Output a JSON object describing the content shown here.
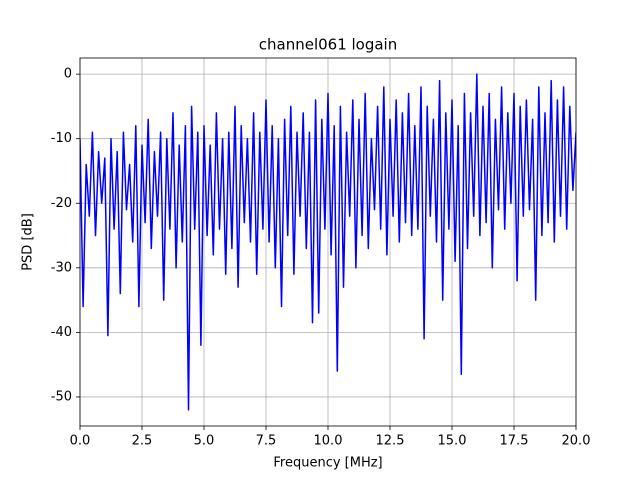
{
  "chart_data": {
    "type": "line",
    "title": "channel061 logain",
    "xlabel": "Frequency [MHz]",
    "ylabel": "PSD [dB]",
    "grid": true,
    "xlim": [
      0,
      20
    ],
    "ylim": [
      -54.5,
      2.5
    ],
    "xticks": [
      {
        "value": 0,
        "label": "0.0"
      },
      2.5,
      {
        "value": 5,
        "label": "5.0"
      },
      7.5,
      {
        "value": 10,
        "label": "10.0"
      },
      12.5,
      {
        "value": 15,
        "label": "15.0"
      },
      17.5,
      {
        "value": 20,
        "label": "20.0"
      }
    ],
    "yticks": [
      0,
      -10,
      -20,
      -30,
      -40,
      -50
    ],
    "x": [
      0,
      0.125,
      0.25,
      0.375,
      0.5,
      0.625,
      0.75,
      0.875,
      1,
      1.125,
      1.25,
      1.375,
      1.5,
      1.625,
      1.75,
      1.875,
      2,
      2.125,
      2.25,
      2.375,
      2.5,
      2.625,
      2.75,
      2.875,
      3,
      3.125,
      3.25,
      3.375,
      3.5,
      3.625,
      3.75,
      3.875,
      4,
      4.125,
      4.25,
      4.375,
      4.5,
      4.625,
      4.75,
      4.875,
      5,
      5.125,
      5.25,
      5.375,
      5.5,
      5.625,
      5.75,
      5.875,
      6,
      6.125,
      6.25,
      6.375,
      6.5,
      6.625,
      6.75,
      6.875,
      7,
      7.125,
      7.25,
      7.375,
      7.5,
      7.625,
      7.75,
      7.875,
      8,
      8.125,
      8.25,
      8.375,
      8.5,
      8.625,
      8.75,
      8.875,
      9,
      9.125,
      9.25,
      9.375,
      9.5,
      9.625,
      9.75,
      9.875,
      10,
      10.125,
      10.25,
      10.375,
      10.5,
      10.625,
      10.75,
      10.875,
      11,
      11.125,
      11.25,
      11.375,
      11.5,
      11.625,
      11.75,
      11.875,
      12,
      12.125,
      12.25,
      12.375,
      12.5,
      12.625,
      12.75,
      12.875,
      13,
      13.125,
      13.25,
      13.375,
      13.5,
      13.625,
      13.75,
      13.875,
      14,
      14.125,
      14.25,
      14.375,
      14.5,
      14.625,
      14.75,
      14.875,
      15,
      15.125,
      15.25,
      15.375,
      15.5,
      15.625,
      15.75,
      15.875,
      16,
      16.125,
      16.25,
      16.375,
      16.5,
      16.625,
      16.75,
      16.875,
      17,
      17.125,
      17.25,
      17.375,
      17.5,
      17.625,
      17.75,
      17.875,
      18,
      18.125,
      18.25,
      18.375,
      18.5,
      18.625,
      18.75,
      18.875,
      19,
      19.125,
      19.25,
      19.375,
      19.5,
      19.625,
      19.75,
      19.875,
      20
    ],
    "series": [
      {
        "color": "#0000ff",
        "values": [
          -10,
          -36,
          -14,
          -22,
          -9,
          -25,
          -12,
          -20,
          -13,
          -40.5,
          -10,
          -24,
          -12,
          -34,
          -9,
          -21,
          -14,
          -26,
          -8,
          -36,
          -11,
          -23,
          -7,
          -27,
          -12,
          -22,
          -9,
          -35,
          -10,
          -24,
          -6,
          -30,
          -11,
          -26,
          -8,
          -52,
          -5,
          -24,
          -9,
          -42,
          -8,
          -25,
          -11,
          -28,
          -6,
          -24,
          -10,
          -31,
          -9,
          -27,
          -5,
          -33,
          -8,
          -23,
          -10,
          -26,
          -6,
          -31,
          -9,
          -24,
          -4,
          -26,
          -8,
          -30,
          -10,
          -36,
          -7,
          -25,
          -5,
          -31,
          -9,
          -22,
          -6,
          -27,
          -9,
          -38.5,
          -4,
          -37,
          -7,
          -24,
          -3,
          -28,
          -8,
          -46,
          -5,
          -33,
          -9,
          -22,
          -4,
          -30,
          -7,
          -25,
          -3,
          -27,
          -10,
          -21,
          -5,
          -24,
          -2,
          -28,
          -7,
          -22,
          -4,
          -26,
          -6,
          -23,
          -3,
          -25,
          -8,
          -24,
          -2,
          -41,
          -5,
          -22,
          -7,
          -26,
          -1,
          -35,
          -6,
          -24,
          -4,
          -29,
          -8,
          -46.5,
          -3,
          -27,
          -6,
          -22,
          0,
          -25,
          -5,
          -23,
          -3,
          -30,
          -7,
          -21,
          -2,
          -24,
          -6,
          -20,
          -3,
          -32,
          -5,
          -22,
          -4,
          -21,
          -7,
          -35,
          -2,
          -25,
          -6,
          -23,
          -1,
          -26,
          -4,
          -22,
          -2,
          -24,
          -5,
          -18,
          -9
        ]
      }
    ]
  }
}
